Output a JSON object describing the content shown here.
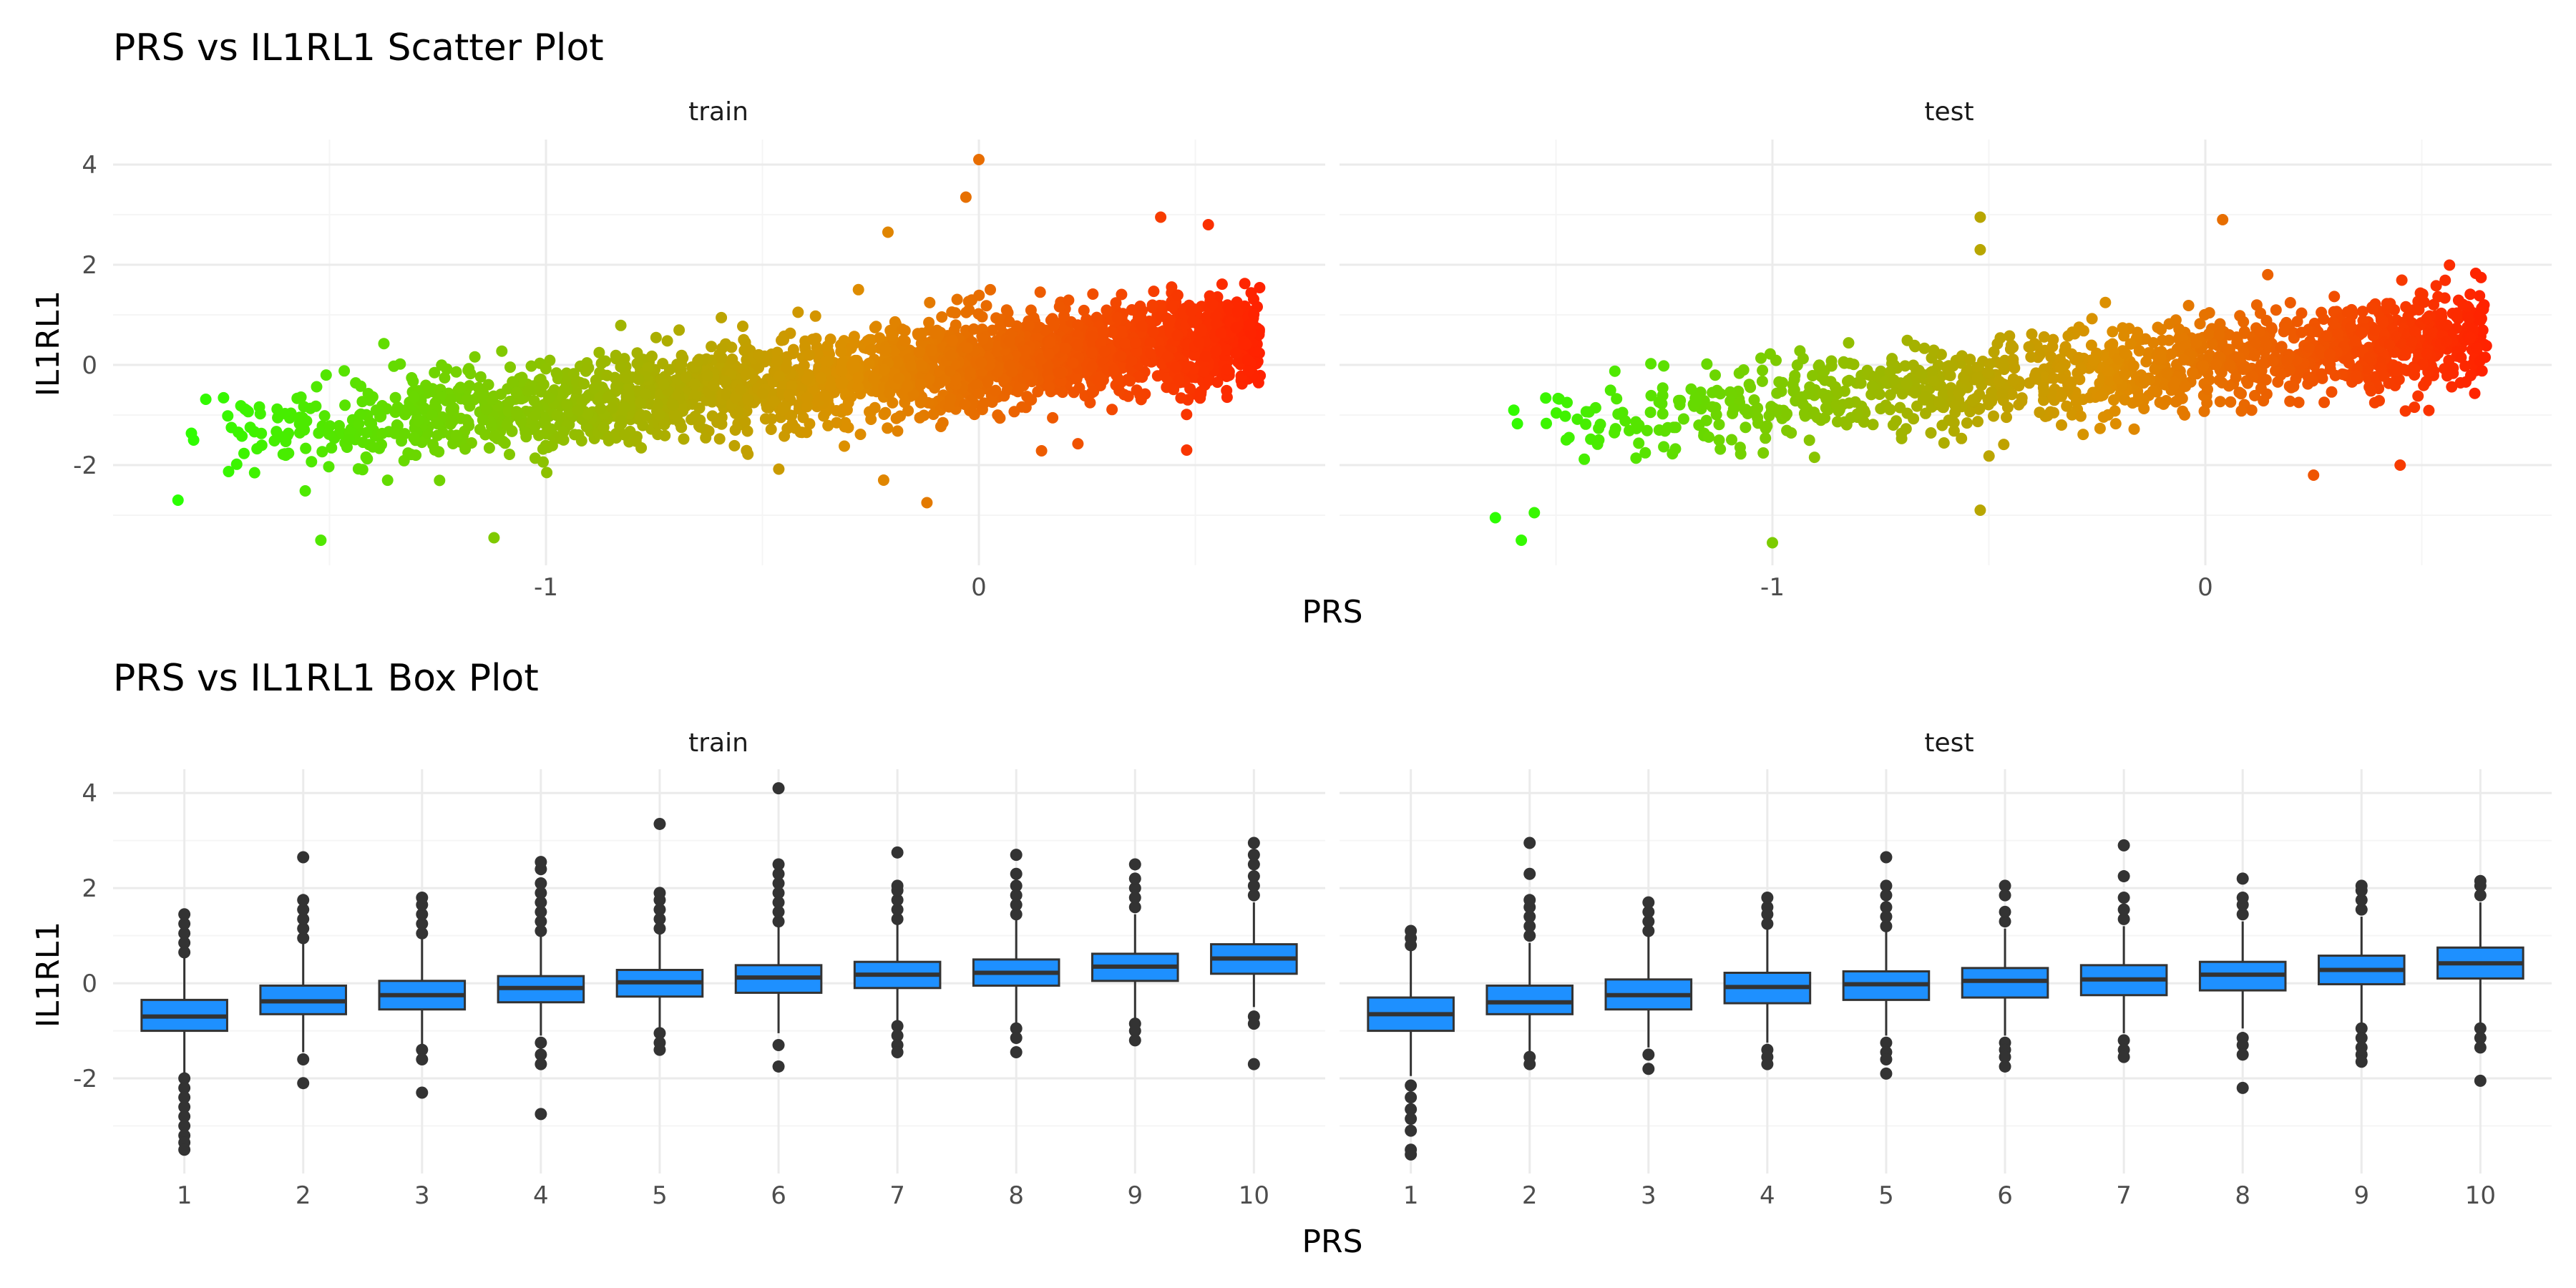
{
  "colors": {
    "background": "#ffffff",
    "grid_major": "#ebebeb",
    "grid_minor": "#f5f5f5",
    "scatter_low": "#2bff00",
    "scatter_mid": "#dd8f00",
    "scatter_high": "#ff2200",
    "box_fill": "#1e90ff",
    "box_line": "#333333",
    "outlier": "#333333"
  },
  "chart_data": [
    {
      "type": "scatter",
      "title": "PRS vs IL1RL1 Scatter Plot",
      "xlabel": "PRS",
      "ylabel": "IL1RL1",
      "xlim": [
        -2.0,
        0.8
      ],
      "ylim": [
        -4.0,
        4.5
      ],
      "x_ticks": [
        -1,
        0
      ],
      "y_ticks": [
        -2,
        0,
        2,
        4
      ],
      "grid": true,
      "color_by": "PRS",
      "panels": [
        {
          "name": "train",
          "n_points": 2600,
          "x_range": [
            -1.85,
            0.65
          ],
          "trend": {
            "slope": 0.85,
            "intercept": 0.05,
            "noise_sd": 0.45
          },
          "outliers": [
            {
              "x": 0.0,
              "y": 4.1
            },
            {
              "x": -0.03,
              "y": 3.35
            },
            {
              "x": -0.21,
              "y": 2.65
            },
            {
              "x": -1.85,
              "y": -2.7
            },
            {
              "x": -1.52,
              "y": -3.5
            },
            {
              "x": -1.12,
              "y": -3.45
            },
            {
              "x": -0.22,
              "y": -2.3
            },
            {
              "x": -0.12,
              "y": -2.75
            },
            {
              "x": 0.48,
              "y": -1.7
            },
            {
              "x": 0.42,
              "y": 2.95
            },
            {
              "x": 0.53,
              "y": 2.8
            }
          ]
        },
        {
          "name": "test",
          "n_points": 1300,
          "x_range": [
            -1.65,
            0.65
          ],
          "trend": {
            "slope": 0.85,
            "intercept": 0.05,
            "noise_sd": 0.45
          },
          "outliers": [
            {
              "x": -0.52,
              "y": 2.95
            },
            {
              "x": -0.52,
              "y": 2.3
            },
            {
              "x": 0.04,
              "y": 2.9
            },
            {
              "x": -1.64,
              "y": -3.05
            },
            {
              "x": -1.58,
              "y": -3.5
            },
            {
              "x": -1.55,
              "y": -2.95
            },
            {
              "x": -1.0,
              "y": -3.55
            },
            {
              "x": -0.52,
              "y": -2.9
            },
            {
              "x": 0.45,
              "y": -2.0
            },
            {
              "x": 0.25,
              "y": -2.2
            }
          ]
        }
      ]
    },
    {
      "type": "box",
      "title": "PRS vs IL1RL1 Box Plot",
      "xlabel": "PRS",
      "ylabel": "IL1RL1",
      "categories": [
        "1",
        "2",
        "3",
        "4",
        "5",
        "6",
        "7",
        "8",
        "9",
        "10"
      ],
      "ylim": [
        -4.0,
        4.5
      ],
      "y_ticks": [
        -2,
        0,
        2,
        4
      ],
      "grid": true,
      "panels": [
        {
          "name": "train",
          "boxes": [
            {
              "q1": -1.0,
              "median": -0.7,
              "q3": -0.35,
              "whisker_low": -1.95,
              "whisker_high": 0.55,
              "outliers": [
                -2.0,
                -2.2,
                -2.4,
                -2.6,
                -2.8,
                -3.0,
                -3.2,
                -3.35,
                -3.5,
                0.65,
                0.85,
                1.05,
                1.25,
                1.45
              ]
            },
            {
              "q1": -0.65,
              "median": -0.38,
              "q3": -0.05,
              "whisker_low": -1.45,
              "whisker_high": 0.85,
              "outliers": [
                -1.6,
                -2.1,
                0.95,
                1.15,
                1.35,
                1.55,
                1.75,
                2.65
              ]
            },
            {
              "q1": -0.55,
              "median": -0.25,
              "q3": 0.05,
              "whisker_low": -1.3,
              "whisker_high": 0.95,
              "outliers": [
                -1.4,
                -1.6,
                -2.3,
                1.05,
                1.25,
                1.45,
                1.65,
                1.8
              ]
            },
            {
              "q1": -0.4,
              "median": -0.1,
              "q3": 0.15,
              "whisker_low": -1.1,
              "whisker_high": 1.0,
              "outliers": [
                -1.25,
                -1.5,
                -1.7,
                -2.75,
                1.1,
                1.3,
                1.5,
                1.7,
                1.9,
                2.1,
                2.4,
                2.55
              ]
            },
            {
              "q1": -0.28,
              "median": 0.02,
              "q3": 0.28,
              "whisker_low": -1.0,
              "whisker_high": 1.05,
              "outliers": [
                -1.05,
                -1.25,
                -1.4,
                1.15,
                1.35,
                1.55,
                1.75,
                1.9,
                3.35
              ]
            },
            {
              "q1": -0.2,
              "median": 0.12,
              "q3": 0.38,
              "whisker_low": -1.05,
              "whisker_high": 1.2,
              "outliers": [
                -1.3,
                -1.75,
                1.3,
                1.5,
                1.7,
                1.9,
                2.1,
                2.3,
                2.5,
                4.1
              ]
            },
            {
              "q1": -0.1,
              "median": 0.18,
              "q3": 0.45,
              "whisker_low": -0.8,
              "whisker_high": 1.25,
              "outliers": [
                -0.9,
                -1.1,
                -1.3,
                -1.45,
                1.35,
                1.55,
                1.75,
                1.95,
                2.05,
                2.75
              ]
            },
            {
              "q1": -0.05,
              "median": 0.22,
              "q3": 0.5,
              "whisker_low": -0.85,
              "whisker_high": 1.35,
              "outliers": [
                -0.95,
                -1.15,
                -1.45,
                1.45,
                1.65,
                1.85,
                2.05,
                2.3,
                2.7
              ]
            },
            {
              "q1": 0.05,
              "median": 0.35,
              "q3": 0.62,
              "whisker_low": -0.75,
              "whisker_high": 1.45,
              "outliers": [
                -0.85,
                -1.0,
                -1.2,
                1.6,
                1.8,
                2.0,
                2.2,
                2.5
              ]
            },
            {
              "q1": 0.2,
              "median": 0.52,
              "q3": 0.82,
              "whisker_low": -0.5,
              "whisker_high": 1.7,
              "outliers": [
                -0.7,
                -0.85,
                -1.7,
                1.85,
                2.05,
                2.25,
                2.5,
                2.7,
                2.95
              ]
            }
          ]
        },
        {
          "name": "test",
          "boxes": [
            {
              "q1": -1.0,
              "median": -0.65,
              "q3": -0.3,
              "whisker_low": -1.95,
              "whisker_high": 0.7,
              "outliers": [
                -2.15,
                -2.4,
                -2.65,
                -2.85,
                -3.1,
                -3.5,
                -3.6,
                0.8,
                0.95,
                1.1
              ]
            },
            {
              "q1": -0.65,
              "median": -0.4,
              "q3": -0.05,
              "whisker_low": -1.45,
              "whisker_high": 0.85,
              "outliers": [
                -1.55,
                -1.7,
                1.0,
                1.2,
                1.4,
                1.6,
                1.75,
                2.3,
                2.95
              ]
            },
            {
              "q1": -0.55,
              "median": -0.25,
              "q3": 0.08,
              "whisker_low": -1.35,
              "whisker_high": 1.0,
              "outliers": [
                -1.5,
                -1.8,
                1.1,
                1.3,
                1.5,
                1.7
              ]
            },
            {
              "q1": -0.42,
              "median": -0.08,
              "q3": 0.22,
              "whisker_low": -1.25,
              "whisker_high": 1.15,
              "outliers": [
                -1.4,
                -1.55,
                -1.7,
                1.25,
                1.45,
                1.6,
                1.8
              ]
            },
            {
              "q1": -0.35,
              "median": -0.02,
              "q3": 0.25,
              "whisker_low": -1.1,
              "whisker_high": 1.1,
              "outliers": [
                -1.25,
                -1.45,
                -1.6,
                -1.9,
                1.2,
                1.4,
                1.6,
                1.85,
                2.05,
                2.65
              ]
            },
            {
              "q1": -0.3,
              "median": 0.05,
              "q3": 0.32,
              "whisker_low": -1.1,
              "whisker_high": 1.15,
              "outliers": [
                -1.25,
                -1.4,
                -1.55,
                -1.75,
                1.3,
                1.5,
                1.85,
                2.05
              ]
            },
            {
              "q1": -0.25,
              "median": 0.08,
              "q3": 0.38,
              "whisker_low": -1.05,
              "whisker_high": 1.2,
              "outliers": [
                -1.2,
                -1.4,
                -1.55,
                1.35,
                1.55,
                1.8,
                2.25,
                2.9
              ]
            },
            {
              "q1": -0.15,
              "median": 0.18,
              "q3": 0.45,
              "whisker_low": -0.95,
              "whisker_high": 1.3,
              "outliers": [
                -1.15,
                -1.3,
                -1.5,
                -2.2,
                1.45,
                1.65,
                1.8,
                2.2
              ]
            },
            {
              "q1": -0.02,
              "median": 0.28,
              "q3": 0.58,
              "whisker_low": -0.85,
              "whisker_high": 1.4,
              "outliers": [
                -0.95,
                -1.15,
                -1.35,
                -1.5,
                -1.65,
                1.55,
                1.75,
                1.95,
                2.05
              ]
            },
            {
              "q1": 0.1,
              "median": 0.42,
              "q3": 0.75,
              "whisker_low": -0.85,
              "whisker_high": 1.7,
              "outliers": [
                -0.95,
                -1.15,
                -1.35,
                -2.05,
                1.85,
                2.05,
                2.15
              ]
            }
          ]
        }
      ]
    }
  ]
}
